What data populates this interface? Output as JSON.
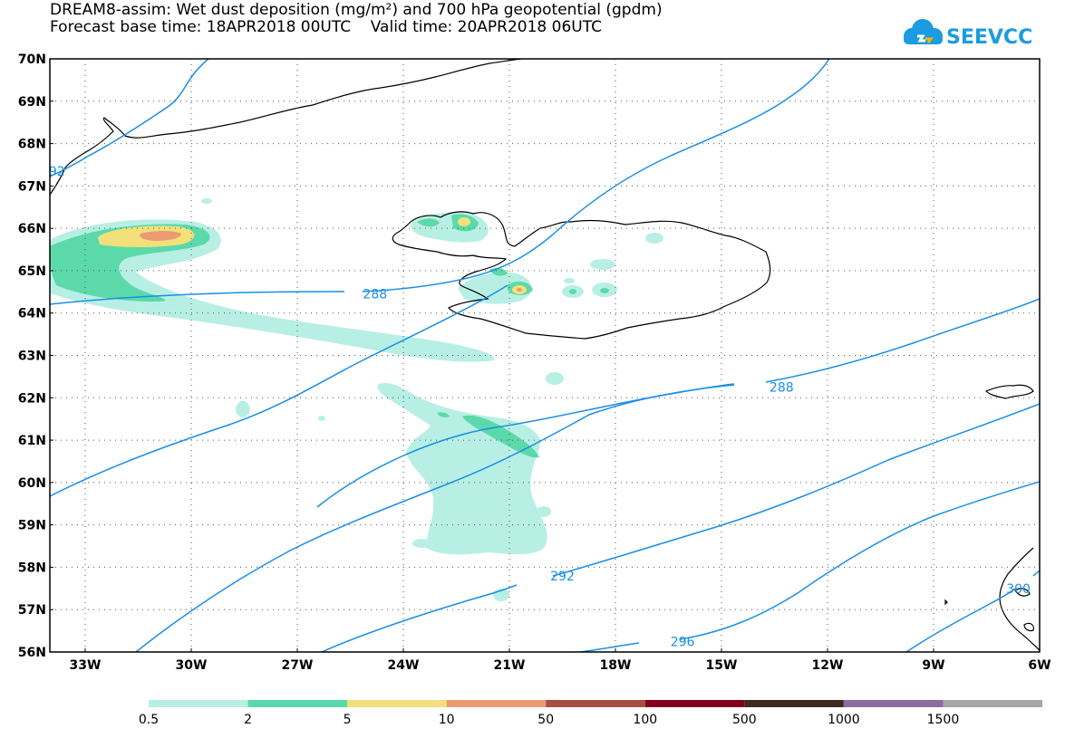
{
  "title_line1": "DREAM8-assim: Wet dust deposition (mg/m²) and 700 hPa geopotential (gpdm)",
  "title_line2": "Forecast base time: 18APR2018 00UTC    Valid time: 20APR2018 06UTC",
  "logo_text": "SEEVCCC",
  "map": {
    "lon_range": [
      -34,
      -6
    ],
    "lat_range": [
      56,
      70
    ],
    "lat_labels": [
      "56N",
      "57N",
      "58N",
      "59N",
      "60N",
      "61N",
      "62N",
      "63N",
      "64N",
      "65N",
      "66N",
      "67N",
      "68N",
      "69N",
      "70N"
    ],
    "lon_labels": [
      "33W",
      "30W",
      "27W",
      "24W",
      "21W",
      "18W",
      "15W",
      "12W",
      "9W",
      "6W"
    ],
    "contour_color": "#1a8ee6",
    "contour_labels": [
      {
        "text": "288",
        "lon": -24.8,
        "lat": 64.45
      },
      {
        "text": "288",
        "lon": -13.3,
        "lat": 62.25
      },
      {
        "text": "292",
        "lon": -19.5,
        "lat": 57.8
      },
      {
        "text": "296",
        "lon": -16.1,
        "lat": 56.25
      },
      {
        "text": "92",
        "lon": -33.8,
        "lat": 67.35
      },
      {
        "text": "300",
        "lon": -6.6,
        "lat": 57.5
      }
    ]
  },
  "legend": {
    "colors": [
      "#b8efe4",
      "#5cd9aa",
      "#f2e07a",
      "#eb9a72",
      "#a64e45",
      "#84001f",
      "#3d2b1f",
      "#8f6a9f",
      "#a6a6a6"
    ],
    "labels": [
      "0.5",
      "2",
      "5",
      "10",
      "50",
      "100",
      "500",
      "1000",
      "1500"
    ]
  }
}
